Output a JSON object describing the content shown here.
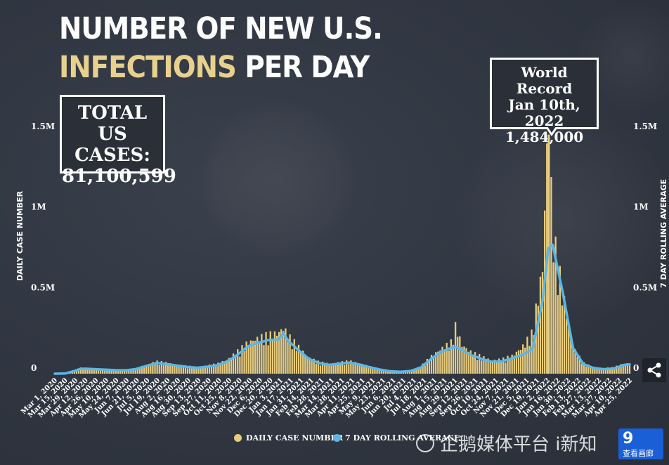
{
  "colors": {
    "background": "#323843",
    "daily_bar": "#e8cc7e",
    "rolling_line": "#5bb7e6",
    "title_accent": "#e8d08d",
    "text": "#ffffff"
  },
  "watermark": {
    "text": "企鹅媒体平台 i新知",
    "badge_main": "9",
    "badge_sub": "查看画廊"
  },
  "chart_data": {
    "type": "bar",
    "title_line_1": "NUMBER OF NEW U.S.",
    "title_line_2_highlight": "INFECTIONS",
    "title_line_2_rest": " PER DAY",
    "ylabel": "DAILY CASE NUMBER",
    "ylabel_right": "7 DAY ROLLING AVERAGE",
    "ylim": [
      0,
      1500000
    ],
    "yticks": [
      {
        "value": 0,
        "label": "0"
      },
      {
        "value": 500000,
        "label": "0.5M"
      },
      {
        "value": 1000000,
        "label": "1M"
      },
      {
        "value": 1500000,
        "label": "1.5M"
      }
    ],
    "grid": false,
    "legend_position": "bottom-center",
    "total_box": {
      "line1": "TOTAL",
      "line2": "US CASES:",
      "value": "81,100,599"
    },
    "record_box": {
      "line1": "World Record",
      "line2": "Jan 10th, 2022",
      "line3": "1,484,000"
    },
    "record": {
      "date": "2022-01-10",
      "value": 1484000
    },
    "x_range": [
      "2020-03-01",
      "2022-05-02"
    ],
    "x_tick_labels": [
      "Mar 1, 2020",
      "Mar 15, 2020",
      "Mar 29, 2020",
      "Apr 12, 2020",
      "Apr 26, 2020",
      "May 10, 2020",
      "May 24, 2020",
      "Jun 7, 2020",
      "Jun 21, 2020",
      "Jul 5, 2020",
      "Jul 19, 2020",
      "Aug 2, 2020",
      "Aug 16, 2020",
      "Aug 30, 2020",
      "Sep 13, 2020",
      "Sep 27, 2020",
      "Oct 11, 2020",
      "Oct 25, 2020",
      "Nov 8, 2020",
      "Nov 22, 2020",
      "Dec 6, 2020",
      "Dec 20, 2020",
      "Jan 3, 2021",
      "Jan 17, 2021",
      "Jan 31, 2021",
      "Feb 14, 2021",
      "Feb 28, 2021",
      "Mar 14, 2021",
      "Mar 28, 2021",
      "Apr 11, 2021",
      "Apr 25, 2021",
      "May 9, 2021",
      "May 23, 2021",
      "Jun 6, 2021",
      "Jun 20, 2021",
      "Jul 4, 2021",
      "Jul 18, 2021",
      "Aug 1, 2021",
      "Aug 15, 2021",
      "Aug 29, 2021",
      "Sep 12, 2021",
      "Sep 26, 2021",
      "Oct 10, 2021",
      "Oct 24, 2021",
      "Nov 7, 2021",
      "Nov 21, 2021",
      "Dec 5, 2021",
      "Dec 19, 2021",
      "Jan 2, 2022",
      "Jan 16, 2022",
      "Jan 30, 2022",
      "Feb 13, 2022",
      "Feb 27, 2022",
      "Mar 13, 2022",
      "Mar 27, 2022",
      "Apr 10, 2022",
      "Apr 25, 2022"
    ],
    "series": [
      {
        "name": "DAILY CASE NUMBER",
        "kind": "bar",
        "points": [
          [
            "2020-03-01",
            0
          ],
          [
            "2020-03-15",
            2000
          ],
          [
            "2020-03-29",
            20000
          ],
          [
            "2020-04-05",
            32000
          ],
          [
            "2020-04-12",
            30000
          ],
          [
            "2020-04-26",
            28000
          ],
          [
            "2020-05-10",
            24000
          ],
          [
            "2020-05-24",
            22000
          ],
          [
            "2020-06-07",
            20000
          ],
          [
            "2020-06-21",
            30000
          ],
          [
            "2020-07-05",
            50000
          ],
          [
            "2020-07-19",
            68000
          ],
          [
            "2020-08-02",
            60000
          ],
          [
            "2020-08-16",
            50000
          ],
          [
            "2020-08-30",
            42000
          ],
          [
            "2020-09-13",
            38000
          ],
          [
            "2020-09-27",
            45000
          ],
          [
            "2020-10-11",
            55000
          ],
          [
            "2020-10-25",
            80000
          ],
          [
            "2020-11-08",
            125000
          ],
          [
            "2020-11-22",
            175000
          ],
          [
            "2020-12-06",
            200000
          ],
          [
            "2020-12-20",
            215000
          ],
          [
            "2021-01-03",
            230000
          ],
          [
            "2021-01-10",
            260000
          ],
          [
            "2021-01-17",
            210000
          ],
          [
            "2021-01-31",
            150000
          ],
          [
            "2021-02-14",
            90000
          ],
          [
            "2021-02-28",
            65000
          ],
          [
            "2021-03-14",
            55000
          ],
          [
            "2021-03-28",
            62000
          ],
          [
            "2021-04-11",
            70000
          ],
          [
            "2021-04-25",
            58000
          ],
          [
            "2021-05-09",
            40000
          ],
          [
            "2021-05-23",
            25000
          ],
          [
            "2021-06-06",
            15000
          ],
          [
            "2021-06-20",
            12000
          ],
          [
            "2021-07-04",
            20000
          ],
          [
            "2021-07-18",
            40000
          ],
          [
            "2021-08-01",
            95000
          ],
          [
            "2021-08-15",
            140000
          ],
          [
            "2021-08-29",
            175000
          ],
          [
            "2021-09-05",
            280000
          ],
          [
            "2021-09-12",
            165000
          ],
          [
            "2021-09-26",
            120000
          ],
          [
            "2021-10-10",
            95000
          ],
          [
            "2021-10-24",
            75000
          ],
          [
            "2021-11-07",
            80000
          ],
          [
            "2021-11-21",
            100000
          ],
          [
            "2021-12-05",
            150000
          ],
          [
            "2021-12-19",
            230000
          ],
          [
            "2022-01-02",
            600000
          ],
          [
            "2022-01-10",
            1484000
          ],
          [
            "2022-01-16",
            800000
          ],
          [
            "2022-01-30",
            450000
          ],
          [
            "2022-02-13",
            150000
          ],
          [
            "2022-02-27",
            60000
          ],
          [
            "2022-03-13",
            35000
          ],
          [
            "2022-03-27",
            30000
          ],
          [
            "2022-04-10",
            35000
          ],
          [
            "2022-04-25",
            60000
          ],
          [
            "2022-05-02",
            55000
          ]
        ]
      },
      {
        "name": "7 DAY ROLLING AVERAGE",
        "kind": "line",
        "points": [
          [
            "2020-03-01",
            0
          ],
          [
            "2020-03-15",
            1000
          ],
          [
            "2020-03-29",
            18000
          ],
          [
            "2020-04-05",
            30000
          ],
          [
            "2020-04-12",
            31000
          ],
          [
            "2020-04-26",
            28000
          ],
          [
            "2020-05-10",
            25000
          ],
          [
            "2020-05-24",
            22000
          ],
          [
            "2020-06-07",
            21000
          ],
          [
            "2020-06-21",
            29000
          ],
          [
            "2020-07-05",
            48000
          ],
          [
            "2020-07-19",
            66000
          ],
          [
            "2020-08-02",
            60000
          ],
          [
            "2020-08-16",
            51000
          ],
          [
            "2020-08-30",
            42000
          ],
          [
            "2020-09-13",
            37000
          ],
          [
            "2020-09-27",
            43000
          ],
          [
            "2020-10-11",
            53000
          ],
          [
            "2020-10-25",
            77000
          ],
          [
            "2020-11-08",
            118000
          ],
          [
            "2020-11-22",
            170000
          ],
          [
            "2020-12-06",
            192000
          ],
          [
            "2020-12-20",
            208000
          ],
          [
            "2021-01-03",
            213000
          ],
          [
            "2021-01-10",
            250000
          ],
          [
            "2021-01-17",
            202000
          ],
          [
            "2021-01-31",
            145000
          ],
          [
            "2021-02-14",
            92000
          ],
          [
            "2021-02-28",
            66000
          ],
          [
            "2021-03-14",
            55000
          ],
          [
            "2021-03-28",
            62000
          ],
          [
            "2021-04-11",
            69000
          ],
          [
            "2021-04-25",
            57000
          ],
          [
            "2021-05-09",
            40000
          ],
          [
            "2021-05-23",
            26000
          ],
          [
            "2021-06-06",
            15000
          ],
          [
            "2021-06-20",
            12000
          ],
          [
            "2021-07-04",
            17000
          ],
          [
            "2021-07-18",
            38000
          ],
          [
            "2021-08-01",
            90000
          ],
          [
            "2021-08-15",
            135000
          ],
          [
            "2021-08-29",
            160000
          ],
          [
            "2021-09-05",
            165000
          ],
          [
            "2021-09-12",
            150000
          ],
          [
            "2021-09-26",
            115000
          ],
          [
            "2021-10-10",
            92000
          ],
          [
            "2021-10-24",
            74000
          ],
          [
            "2021-11-07",
            76000
          ],
          [
            "2021-11-21",
            96000
          ],
          [
            "2021-12-05",
            118000
          ],
          [
            "2021-12-19",
            150000
          ],
          [
            "2022-01-02",
            450000
          ],
          [
            "2022-01-10",
            780000
          ],
          [
            "2022-01-16",
            800000
          ],
          [
            "2022-01-30",
            500000
          ],
          [
            "2022-02-13",
            160000
          ],
          [
            "2022-02-27",
            60000
          ],
          [
            "2022-03-13",
            36000
          ],
          [
            "2022-03-27",
            28000
          ],
          [
            "2022-04-10",
            32000
          ],
          [
            "2022-04-25",
            55000
          ],
          [
            "2022-05-02",
            58000
          ]
        ]
      }
    ]
  }
}
